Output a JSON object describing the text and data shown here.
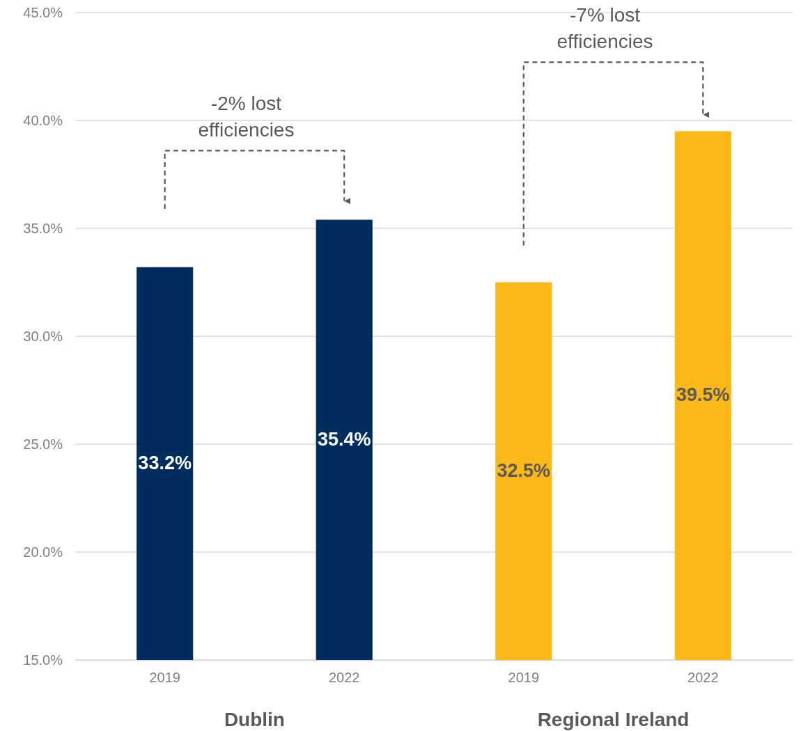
{
  "chart_data": {
    "type": "bar",
    "categories": [
      "2019",
      "2022",
      "2019",
      "2022"
    ],
    "values": [
      33.2,
      35.4,
      32.5,
      39.5
    ],
    "colors": [
      "#002d5e",
      "#002d5e",
      "#fbb817",
      "#fbb817"
    ],
    "value_labels": [
      "33.2%",
      "35.4%",
      "32.5%",
      "39.5%"
    ],
    "ylim": [
      15,
      45
    ],
    "yticks": [
      {
        "value": 15,
        "label": "15.0%"
      },
      {
        "value": 20,
        "label": "20.0%"
      },
      {
        "value": 25,
        "label": "25.0%"
      },
      {
        "value": 30,
        "label": "30.0%"
      },
      {
        "value": 35,
        "label": "35.0%"
      },
      {
        "value": 40,
        "label": "40.0%"
      },
      {
        "value": 45,
        "label": "45.0%"
      }
    ],
    "grid": "y",
    "annotations": [
      "Dublin",
      "Regional Ireland",
      "-2% lost\nefficiencies",
      "-7% lost\nefficiencies"
    ]
  }
}
